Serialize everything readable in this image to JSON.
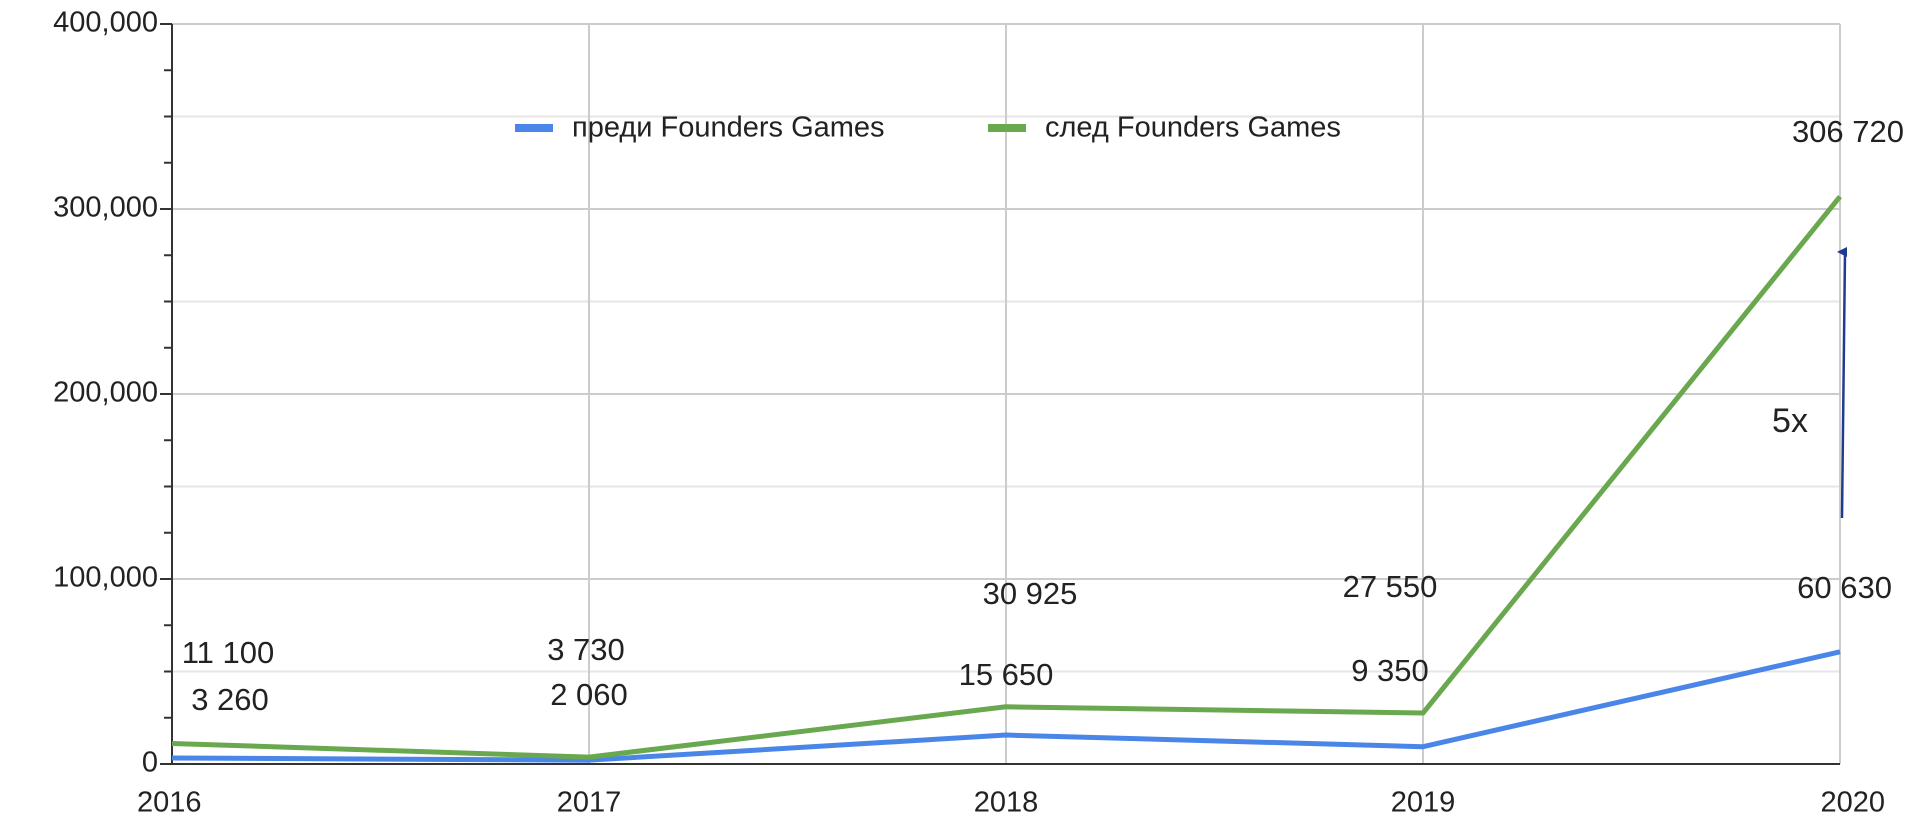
{
  "chart_data": {
    "type": "line",
    "categories": [
      "2016",
      "2017",
      "2018",
      "2019",
      "2020"
    ],
    "series": [
      {
        "name": "преди Founders Games",
        "color": "#4a86e8",
        "values": [
          3260,
          2060,
          15650,
          9350,
          60630
        ],
        "value_labels": [
          "3 260",
          "2 060",
          "15 650",
          "9 350",
          "60 630"
        ]
      },
      {
        "name": "след Founders Games",
        "color": "#6aa84f",
        "values": [
          11100,
          3730,
          30925,
          27550,
          306720
        ],
        "value_labels": [
          "11 100",
          "3 730",
          "30 925",
          "27 550",
          "306 720"
        ]
      }
    ],
    "ylim": [
      0,
      400000
    ],
    "yticks": [
      0,
      {
        "value": 100000,
        "label": "100,000"
      },
      {
        "value": 200000,
        "label": "200,000"
      },
      {
        "value": 300000,
        "label": "300,000"
      },
      {
        "value": 400000,
        "label": "400,000"
      }
    ],
    "yminorticks": [
      25000,
      50000,
      75000,
      125000,
      150000,
      175000,
      225000,
      250000,
      275000,
      325000,
      350000,
      375000
    ],
    "grid": true,
    "legend": "top",
    "annotations": [
      {
        "text": "5x"
      }
    ]
  }
}
